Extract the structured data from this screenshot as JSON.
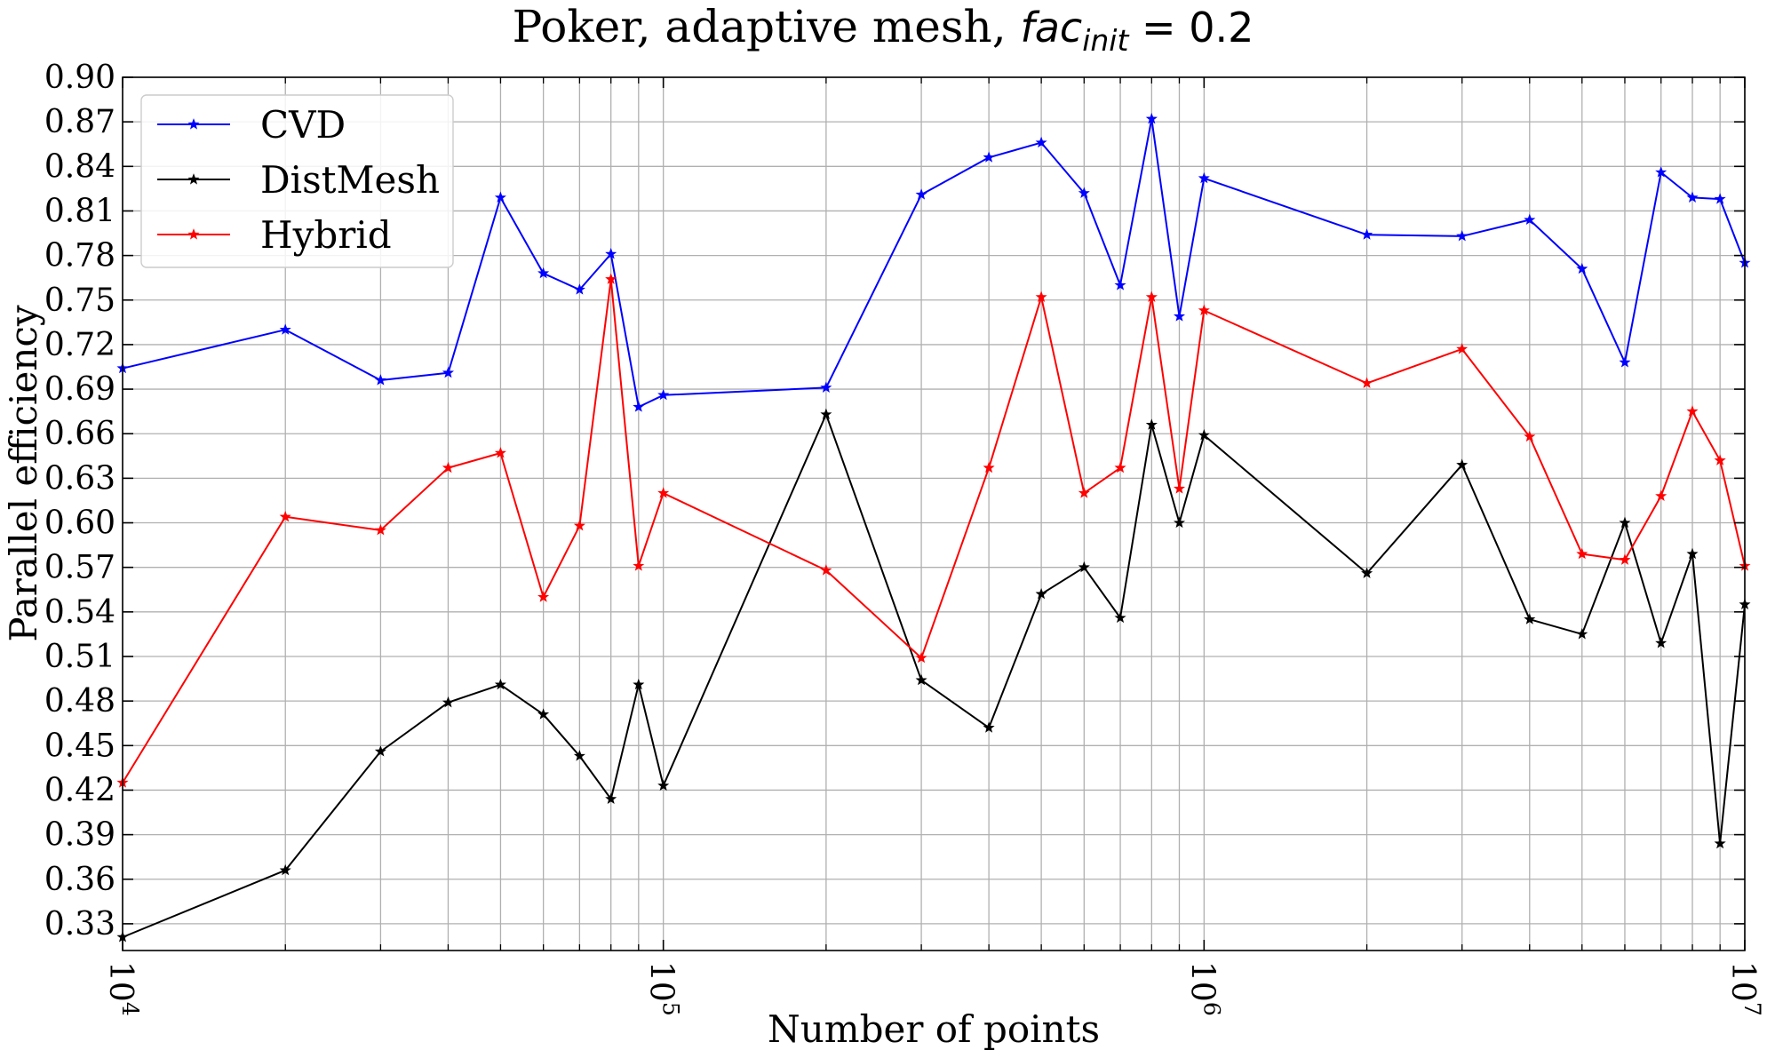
{
  "chart_data": {
    "type": "line",
    "title": {
      "prefix": "Poker, adaptive mesh, ",
      "math_base": "fac",
      "math_sub": "init",
      "math_rest": " = 0.2"
    },
    "xlabel": "Number of points",
    "ylabel": "Parallel efficiency",
    "xscale": "log",
    "xlim": [
      10000,
      10000000
    ],
    "ylim": [
      0.312,
      0.9
    ],
    "yticks": [
      0.33,
      0.36,
      0.39,
      0.42,
      0.45,
      0.48,
      0.51,
      0.54,
      0.57,
      0.6,
      0.63,
      0.66,
      0.69,
      0.72,
      0.75,
      0.78,
      0.81,
      0.84,
      0.87,
      0.9
    ],
    "ytick_labels": [
      "0.33",
      "0.36",
      "0.39",
      "0.42",
      "0.45",
      "0.48",
      "0.51",
      "0.54",
      "0.57",
      "0.60",
      "0.63",
      "0.66",
      "0.69",
      "0.72",
      "0.75",
      "0.78",
      "0.81",
      "0.84",
      "0.87",
      "0.90"
    ],
    "xticks": [
      {
        "value": 10000,
        "base": "10",
        "exp": "4"
      },
      {
        "value": 100000,
        "base": "10",
        "exp": "5"
      },
      {
        "value": 1000000,
        "base": "10",
        "exp": "6"
      },
      {
        "value": 10000000,
        "base": "10",
        "exp": "7"
      }
    ],
    "grid": true,
    "legend_position": "top-left",
    "x": [
      10000,
      20000,
      30000,
      40000,
      50000,
      60000,
      70000,
      80000,
      90000,
      100000,
      200000,
      300000,
      400000,
      500000,
      600000,
      700000,
      800000,
      900000,
      1000000,
      2000000,
      3000000,
      4000000,
      5000000,
      6000000,
      7000000,
      8000000,
      9000000,
      10000000
    ],
    "series": [
      {
        "name": "CVD",
        "color": "#0000ff",
        "values": [
          0.704,
          0.73,
          0.696,
          0.701,
          0.819,
          0.768,
          0.757,
          0.781,
          0.678,
          0.686,
          0.691,
          0.821,
          0.846,
          0.856,
          0.822,
          0.76,
          0.872,
          0.739,
          0.832,
          0.794,
          0.793,
          0.804,
          0.771,
          0.708,
          0.836,
          0.819,
          0.818,
          0.775
        ]
      },
      {
        "name": "DistMesh",
        "color": "#000000",
        "values": [
          0.321,
          0.366,
          0.446,
          0.479,
          0.491,
          0.471,
          0.443,
          0.414,
          0.491,
          0.423,
          0.673,
          0.494,
          0.462,
          0.552,
          0.57,
          0.536,
          0.666,
          0.6,
          0.659,
          0.566,
          0.639,
          0.535,
          0.525,
          0.6,
          0.519,
          0.579,
          0.384,
          0.545
        ]
      },
      {
        "name": "Hybrid",
        "color": "#ff0000",
        "values": [
          0.425,
          0.604,
          0.595,
          0.637,
          0.647,
          0.55,
          0.598,
          0.764,
          0.571,
          0.62,
          0.568,
          0.509,
          0.637,
          0.752,
          0.62,
          0.637,
          0.752,
          0.623,
          0.743,
          0.694,
          0.717,
          0.658,
          0.579,
          0.575,
          0.618,
          0.675,
          0.642,
          0.571
        ]
      }
    ]
  }
}
